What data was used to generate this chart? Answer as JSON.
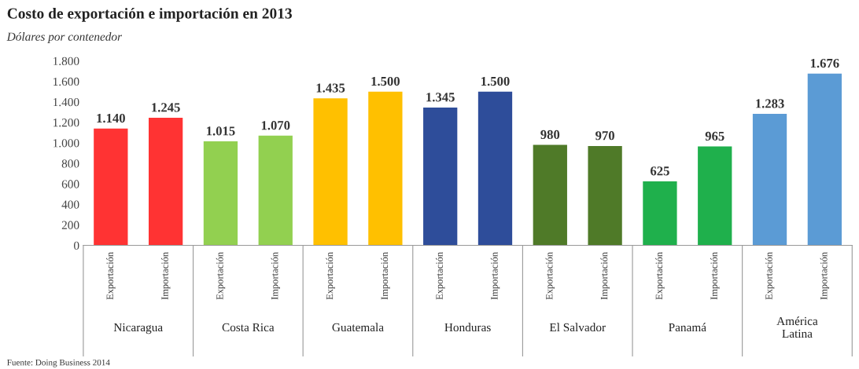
{
  "chart_data": {
    "type": "bar",
    "title": "Costo de exportación e importación en 2013",
    "subtitle": "Dólares por contenedor",
    "categories": [
      "Exportación",
      "Importación",
      "Exportación",
      "Importación",
      "Exportación",
      "Importación",
      "Exportación",
      "Importación",
      "Exportación",
      "Importación",
      "Exportación",
      "Importación",
      "Exportación",
      "Importación"
    ],
    "values": [
      1140,
      1245,
      1015,
      1070,
      1435,
      1500,
      1345,
      1500,
      980,
      970,
      625,
      965,
      1283,
      1676
    ],
    "value_labels": [
      "1.140",
      "1.245",
      "1.015",
      "1.070",
      "1.435",
      "1.500",
      "1.345",
      "1.500",
      "980",
      "970",
      "625",
      "965",
      "1.283",
      "1.676"
    ],
    "colors": [
      "#ff3333",
      "#ff3333",
      "#92d050",
      "#92d050",
      "#ffc000",
      "#ffc000",
      "#2e4d9a",
      "#2e4d9a",
      "#4f7a28",
      "#4f7a28",
      "#1fb04c",
      "#1fb04c",
      "#5b9bd5",
      "#5b9bd5"
    ],
    "ylim": [
      0,
      1800
    ],
    "yticks": [
      0,
      200,
      400,
      600,
      800,
      {
        "value": 1000,
        "label": "1.000"
      },
      {
        "value": 1200,
        "label": "1.200"
      },
      {
        "value": 1400,
        "label": "1.400"
      },
      {
        "value": 1600,
        "label": "1.600"
      },
      {
        "value": 1800,
        "label": "1.800"
      }
    ],
    "annotations": [
      "Nicaragua",
      "Costa Rica",
      "Guatemala",
      "Honduras",
      "El Salvador",
      "Panamá",
      "América\nLatina",
      "Fuente: Doing Business 2014"
    ],
    "grid": false,
    "legend": false
  }
}
